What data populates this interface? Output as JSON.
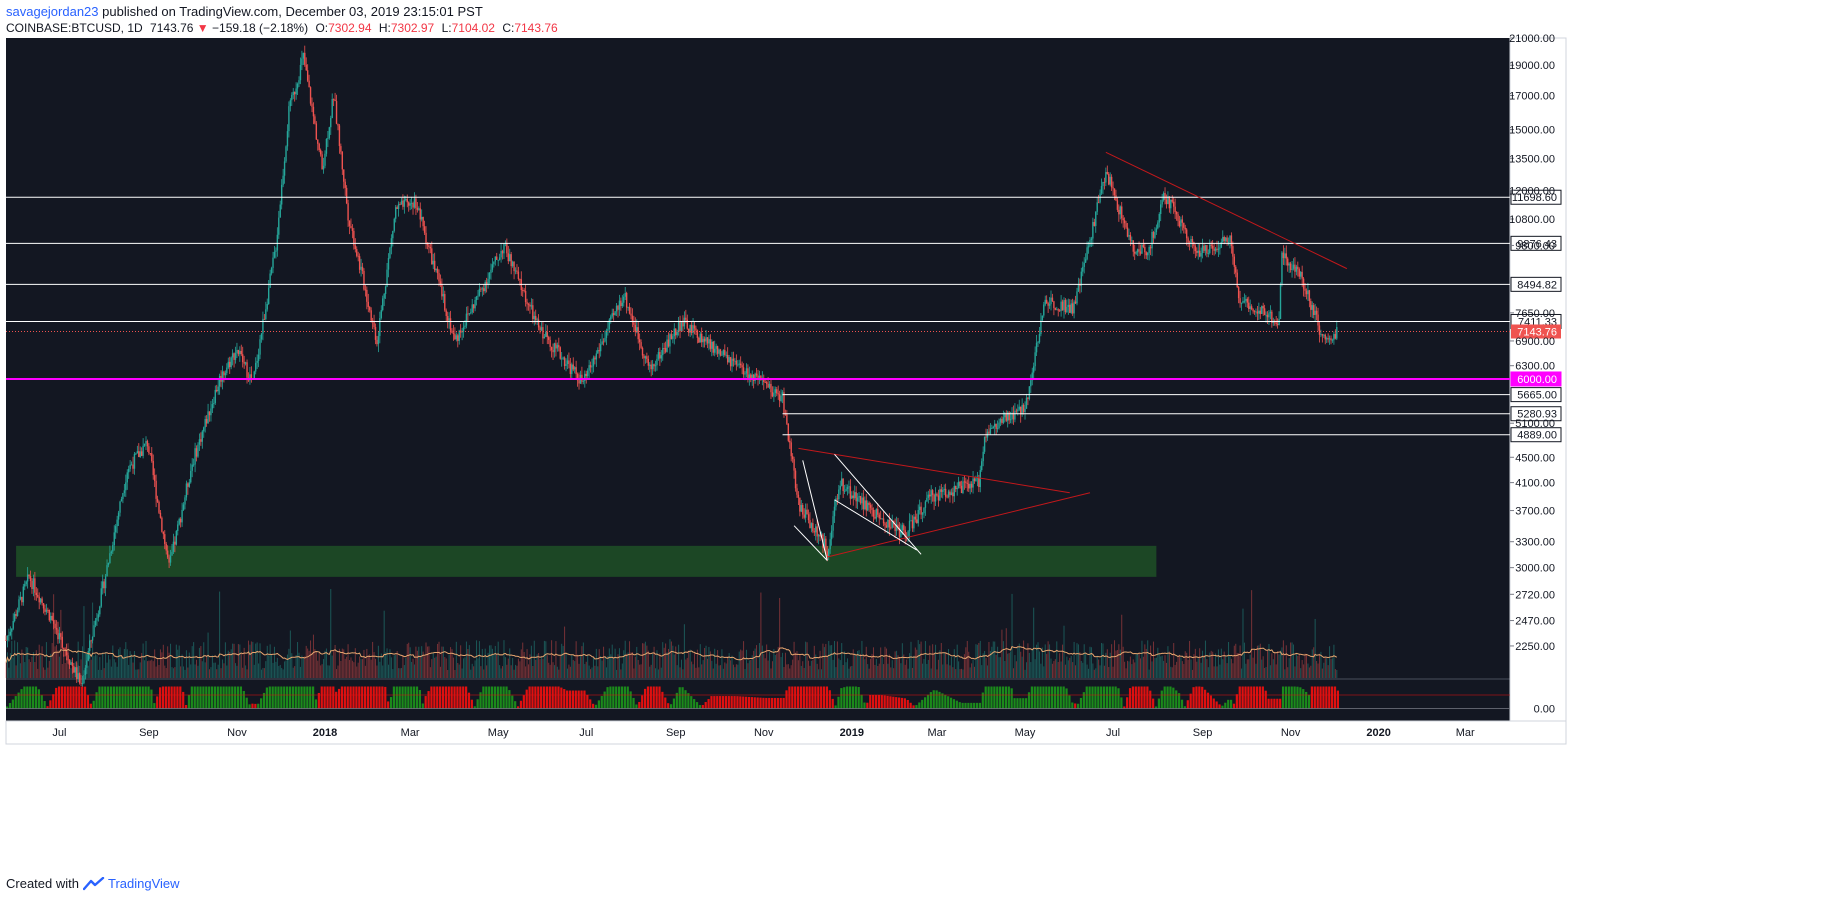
{
  "header": {
    "author": "savagejordan23",
    "published_text": "published on TradingView.com, December 03, 2019 23:15:01 PST",
    "symbol": "COINBASE:BTCUSD, 1D",
    "last": "7143.76",
    "change_arrow": "▼",
    "change": "−159.18 (−2.18%)",
    "open_label": "O:",
    "open": "7302.94",
    "high_label": "H:",
    "high": "7302.97",
    "low_label": "L:",
    "low": "7104.02",
    "close_label": "C:",
    "close": "7143.76"
  },
  "footer": {
    "created_with": "Created with",
    "brand": "TradingView",
    "logo_icon": "tradingview-logo-icon"
  },
  "colors": {
    "background": "#131722",
    "up": "#26a69a",
    "down": "#ef5350",
    "support_line": "#ffffff",
    "key_level": "#ff00ff",
    "trendline": "#c2181b",
    "demand_zone": "#1e4d26",
    "volume_ma": "#e8a66f",
    "osc_up": "#1b8a1b",
    "osc_down": "#e01010"
  },
  "chart_data": {
    "type": "candlestick",
    "symbol": "COINBASE:BTCUSD",
    "interval": "1D",
    "y_scale": "log",
    "ylim": [
      2000,
      21000
    ],
    "y_ticks": [
      21000,
      19000,
      17000,
      15000,
      13500,
      12000,
      10800,
      9800,
      7650,
      6900,
      6300,
      5100,
      4500,
      4100,
      3700,
      3300,
      3000,
      2720,
      2470,
      2250
    ],
    "y_tick_labels": [
      "21000.00",
      "19000.00",
      "17000.00",
      "15000.00",
      "13500.00",
      "12000.00",
      "10800.00",
      "9800.00",
      "7650.00",
      "6900.00",
      "6300.00",
      "5100.00",
      "4500.00",
      "4100.00",
      "3700.00",
      "3300.00",
      "3000.00",
      "2720.00",
      "2470.00",
      "2250.00"
    ],
    "x_ticks": [
      "Jul",
      "Sep",
      "Nov",
      "2018",
      "Mar",
      "May",
      "Jul",
      "Sep",
      "Nov",
      "2019",
      "Mar",
      "May",
      "Jul",
      "Sep",
      "Nov",
      "2020",
      "Mar"
    ],
    "x_range": [
      "2017-05-25",
      "2020-04-01"
    ],
    "price_path": [
      [
        "2017-05-25",
        2300
      ],
      [
        "2017-06-10",
        2900
      ],
      [
        "2017-06-25",
        2500
      ],
      [
        "2017-07-16",
        1950
      ],
      [
        "2017-08-01",
        2850
      ],
      [
        "2017-08-17",
        4300
      ],
      [
        "2017-08-31",
        4750
      ],
      [
        "2017-09-15",
        3000
      ],
      [
        "2017-10-01",
        4400
      ],
      [
        "2017-10-20",
        6000
      ],
      [
        "2017-11-01",
        6700
      ],
      [
        "2017-11-12",
        5900
      ],
      [
        "2017-11-28",
        9800
      ],
      [
        "2017-12-07",
        16000
      ],
      [
        "2017-12-17",
        19600
      ],
      [
        "2017-12-30",
        13000
      ],
      [
        "2018-01-07",
        17000
      ],
      [
        "2018-01-17",
        11000
      ],
      [
        "2018-02-06",
        6900
      ],
      [
        "2018-02-19",
        11200
      ],
      [
        "2018-03-05",
        11500
      ],
      [
        "2018-04-01",
        6900
      ],
      [
        "2018-05-05",
        9800
      ],
      [
        "2018-05-28",
        7300
      ],
      [
        "2018-06-29",
        5900
      ],
      [
        "2018-07-27",
        8200
      ],
      [
        "2018-08-14",
        6200
      ],
      [
        "2018-09-05",
        7400
      ],
      [
        "2018-10-12",
        6300
      ],
      [
        "2018-11-14",
        5600
      ],
      [
        "2018-11-25",
        3800
      ],
      [
        "2018-12-15",
        3200
      ],
      [
        "2018-12-24",
        4100
      ],
      [
        "2019-01-20",
        3600
      ],
      [
        "2019-02-07",
        3400
      ],
      [
        "2019-02-25",
        3900
      ],
      [
        "2019-03-30",
        4100
      ],
      [
        "2019-04-03",
        4900
      ],
      [
        "2019-05-01",
        5400
      ],
      [
        "2019-05-15",
        8000
      ],
      [
        "2019-06-04",
        7800
      ],
      [
        "2019-06-26",
        12900
      ],
      [
        "2019-07-16",
        9500
      ],
      [
        "2019-07-26",
        9700
      ],
      [
        "2019-08-06",
        11800
      ],
      [
        "2019-08-29",
        9500
      ],
      [
        "2019-09-20",
        10100
      ],
      [
        "2019-09-26",
        8100
      ],
      [
        "2019-10-24",
        7400
      ],
      [
        "2019-10-26",
        9500
      ],
      [
        "2019-11-08",
        8800
      ],
      [
        "2019-11-25",
        6800
      ],
      [
        "2019-12-03",
        7143.76
      ]
    ],
    "horizontal_levels": [
      {
        "value": 11698.6,
        "label": "11698.60",
        "color": "white",
        "from": "2017-05-25"
      },
      {
        "value": 9876.43,
        "label": "9876.43",
        "color": "white",
        "from": "2017-05-25"
      },
      {
        "value": 8494.82,
        "label": "8494.82",
        "color": "white",
        "from": "2017-05-25"
      },
      {
        "value": 7411.33,
        "label": "7411.33",
        "color": "white",
        "from": "2017-05-25"
      },
      {
        "value": 6000.0,
        "label": "6000.00",
        "color": "magenta",
        "from": "2017-05-25"
      },
      {
        "value": 5665.0,
        "label": "5665.00",
        "color": "white",
        "from": "2018-11-14"
      },
      {
        "value": 5280.93,
        "label": "5280.93",
        "color": "white",
        "from": "2018-11-14"
      },
      {
        "value": 4889.0,
        "label": "4889.00",
        "color": "white",
        "from": "2018-11-14"
      }
    ],
    "last_price": {
      "value": 7143.76,
      "label": "7143.76"
    },
    "demand_zone": {
      "from": "2017-06-01",
      "to": "2019-07-31",
      "low": 2900,
      "high": 3250
    },
    "trendlines": [
      {
        "from": [
          "2019-06-26",
          13800
        ],
        "to": [
          "2019-12-10",
          9000
        ],
        "color": "red"
      },
      {
        "from": [
          "2018-11-25",
          4650
        ],
        "to": [
          "2019-06-01",
          3950
        ],
        "color": "red"
      },
      {
        "from": [
          "2018-12-15",
          3120
        ],
        "to": [
          "2019-06-15",
          3950
        ],
        "color": "red"
      },
      {
        "from": [
          "2018-11-28",
          4450
        ],
        "to": [
          "2018-12-15",
          3080
        ],
        "color": "white"
      },
      {
        "from": [
          "2018-11-22",
          3500
        ],
        "to": [
          "2018-12-15",
          3080
        ],
        "color": "white"
      },
      {
        "from": [
          "2018-12-20",
          4550
        ],
        "to": [
          "2019-02-18",
          3150
        ],
        "color": "white"
      },
      {
        "from": [
          "2018-12-20",
          3850
        ],
        "to": [
          "2019-02-15",
          3200
        ],
        "color": "white"
      }
    ],
    "oscillator": {
      "y_tick_label": "0.00"
    }
  }
}
